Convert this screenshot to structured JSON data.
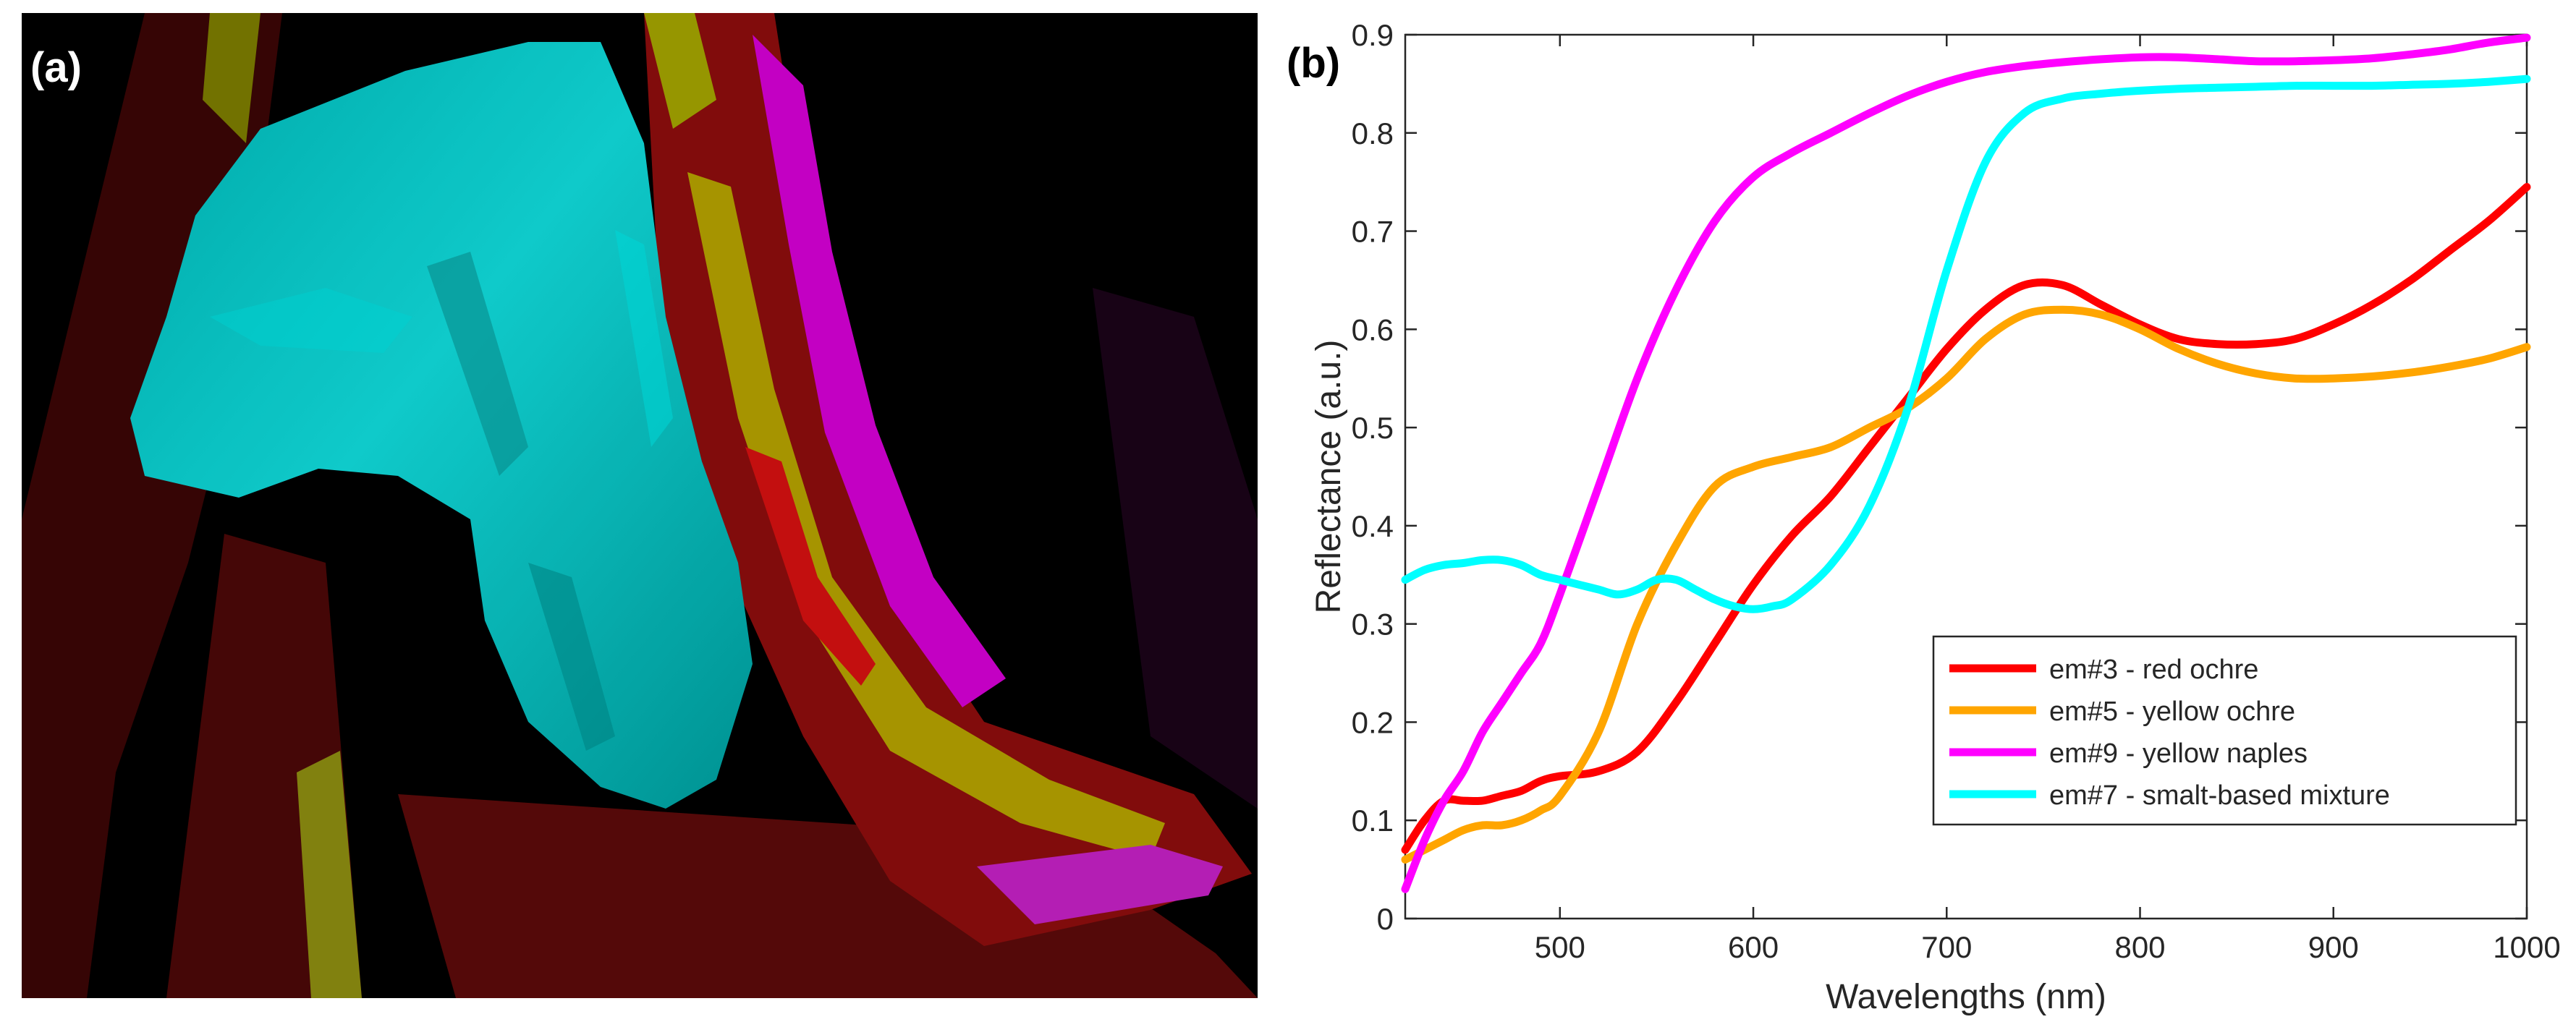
{
  "panel_a": {
    "label": "(a)"
  },
  "panel_b": {
    "label": "(b)"
  },
  "chart_data": {
    "type": "line",
    "title": "",
    "xlabel": "Wavelengths (nm)",
    "ylabel": "Reflectance (a.u.)",
    "xlim": [
      420,
      1000
    ],
    "ylim": [
      0,
      0.9
    ],
    "xticks": [
      500,
      600,
      700,
      800,
      900,
      1000
    ],
    "yticks": [
      0,
      0.1,
      0.2,
      0.3,
      0.4,
      0.5,
      0.6,
      0.7,
      0.8,
      0.9
    ],
    "ytick_labels": [
      "0",
      "0.1",
      "0.2",
      "0.3",
      "0.4",
      "0.5",
      "0.6",
      "0.7",
      "0.8",
      "0.9"
    ],
    "legend_position": "lower-right",
    "series": [
      {
        "name": "em#3 - red ochre",
        "color": "#ff0000",
        "x": [
          420,
          430,
          440,
          450,
          460,
          470,
          480,
          490,
          500,
          520,
          540,
          560,
          580,
          600,
          620,
          640,
          660,
          680,
          700,
          720,
          740,
          760,
          780,
          800,
          820,
          840,
          860,
          880,
          900,
          920,
          940,
          960,
          980,
          1000
        ],
        "y": [
          0.07,
          0.1,
          0.12,
          0.12,
          0.12,
          0.125,
          0.13,
          0.14,
          0.145,
          0.15,
          0.17,
          0.22,
          0.28,
          0.34,
          0.39,
          0.43,
          0.48,
          0.53,
          0.58,
          0.62,
          0.645,
          0.645,
          0.625,
          0.605,
          0.59,
          0.585,
          0.585,
          0.59,
          0.605,
          0.625,
          0.65,
          0.68,
          0.71,
          0.745
        ]
      },
      {
        "name": "em#5 - yellow ochre",
        "color": "#ffa500",
        "x": [
          420,
          430,
          440,
          450,
          460,
          470,
          480,
          490,
          500,
          520,
          540,
          560,
          580,
          600,
          620,
          640,
          660,
          680,
          700,
          720,
          740,
          760,
          780,
          800,
          820,
          840,
          860,
          880,
          900,
          920,
          940,
          960,
          980,
          1000
        ],
        "y": [
          0.06,
          0.07,
          0.08,
          0.09,
          0.095,
          0.095,
          0.1,
          0.11,
          0.125,
          0.19,
          0.3,
          0.38,
          0.44,
          0.46,
          0.47,
          0.48,
          0.5,
          0.52,
          0.55,
          0.59,
          0.615,
          0.62,
          0.615,
          0.6,
          0.58,
          0.565,
          0.555,
          0.55,
          0.55,
          0.552,
          0.556,
          0.562,
          0.57,
          0.582
        ]
      },
      {
        "name": "em#9 - yellow naples",
        "color": "#ff00ff",
        "x": [
          420,
          430,
          440,
          450,
          460,
          470,
          480,
          490,
          500,
          520,
          540,
          560,
          580,
          600,
          620,
          640,
          660,
          680,
          700,
          720,
          740,
          760,
          780,
          800,
          820,
          840,
          860,
          880,
          900,
          920,
          940,
          960,
          980,
          1000
        ],
        "y": [
          0.03,
          0.08,
          0.12,
          0.15,
          0.19,
          0.22,
          0.25,
          0.28,
          0.33,
          0.44,
          0.55,
          0.64,
          0.71,
          0.755,
          0.78,
          0.8,
          0.82,
          0.838,
          0.852,
          0.862,
          0.868,
          0.872,
          0.875,
          0.877,
          0.877,
          0.875,
          0.873,
          0.873,
          0.874,
          0.876,
          0.88,
          0.885,
          0.892,
          0.897
        ]
      },
      {
        "name": "em#7 - smalt-based mixture",
        "color": "#00ffff",
        "x": [
          420,
          430,
          440,
          450,
          460,
          470,
          480,
          490,
          500,
          510,
          520,
          530,
          540,
          550,
          560,
          570,
          580,
          590,
          600,
          610,
          620,
          640,
          660,
          680,
          700,
          720,
          740,
          760,
          780,
          800,
          820,
          840,
          860,
          880,
          900,
          920,
          940,
          960,
          980,
          1000
        ],
        "y": [
          0.345,
          0.355,
          0.36,
          0.362,
          0.365,
          0.365,
          0.36,
          0.35,
          0.345,
          0.34,
          0.335,
          0.33,
          0.335,
          0.345,
          0.345,
          0.335,
          0.325,
          0.318,
          0.315,
          0.318,
          0.325,
          0.36,
          0.42,
          0.52,
          0.66,
          0.77,
          0.82,
          0.835,
          0.84,
          0.843,
          0.845,
          0.846,
          0.847,
          0.848,
          0.848,
          0.848,
          0.849,
          0.85,
          0.852,
          0.855
        ]
      }
    ]
  }
}
